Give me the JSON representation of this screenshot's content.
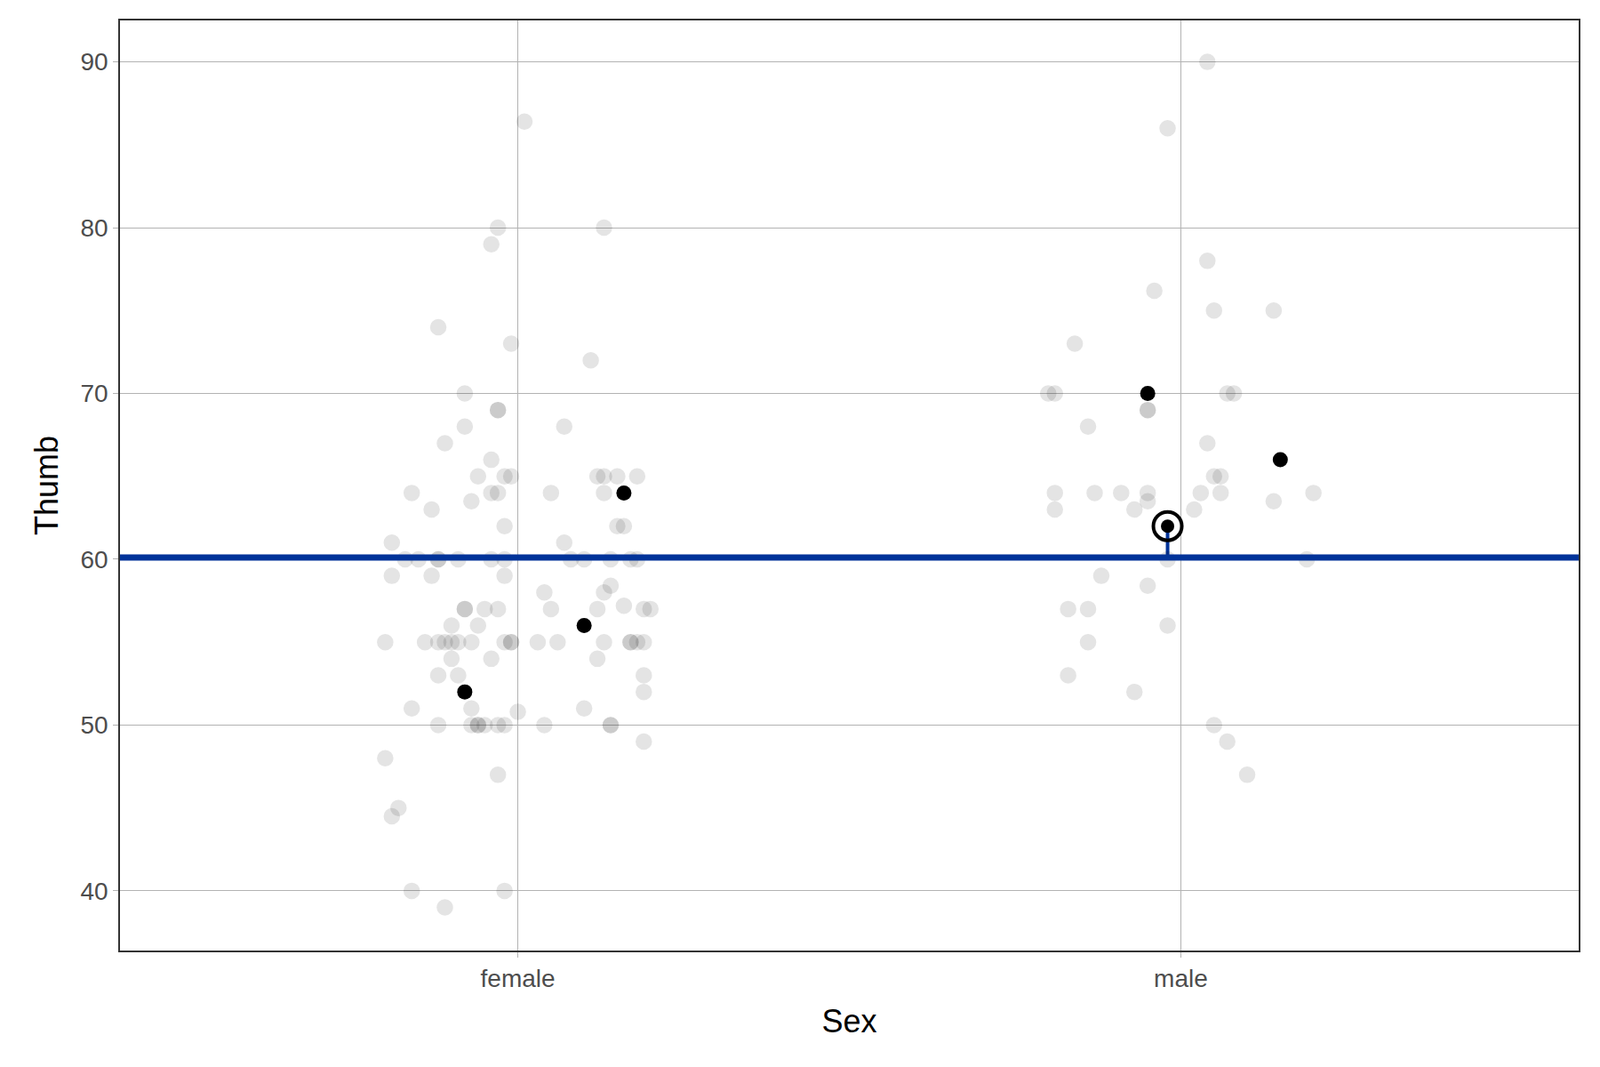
{
  "chart_data": {
    "type": "scatter",
    "x_label": "Sex",
    "y_label": "Thumb",
    "xlim": [
      0.4,
      2.6
    ],
    "xticks": [
      {
        "value": 1,
        "label": "female"
      },
      {
        "value": 2,
        "label": "male"
      }
    ],
    "ylim": [
      36.4,
      92.5
    ],
    "yticks": [
      40,
      50,
      60,
      70,
      80,
      90
    ],
    "grid": true,
    "mean_line": {
      "value": 60.1,
      "color": "#003399"
    },
    "series": [
      {
        "marker": "faint",
        "color": "#000000",
        "x": [
          1.01,
          0.97,
          1.13,
          0.96,
          0.88,
          0.99,
          1.11,
          0.92,
          0.97,
          0.97,
          0.92,
          1.07,
          0.89,
          0.96,
          0.94,
          0.98,
          0.99,
          1.12,
          1.13,
          1.15,
          1.18,
          0.84,
          0.96,
          0.97,
          1.05,
          1.13,
          0.87,
          0.93,
          1.15,
          1.16,
          0.98,
          0.81,
          1.07,
          0.81,
          0.87,
          0.98,
          0.83,
          0.85,
          0.88,
          0.88,
          0.91,
          0.96,
          0.98,
          1.08,
          1.1,
          1.14,
          1.17,
          1.18,
          1.14,
          1.13,
          1.04,
          0.92,
          0.92,
          0.95,
          0.97,
          1.05,
          1.12,
          1.16,
          1.19,
          1.2,
          0.9,
          0.94,
          0.8,
          0.86,
          0.88,
          0.89,
          0.9,
          0.91,
          0.93,
          0.98,
          0.99,
          0.99,
          1.03,
          1.06,
          1.13,
          1.17,
          1.17,
          1.18,
          1.19,
          0.9,
          0.96,
          1.12,
          0.88,
          0.91,
          1.19,
          1.19,
          0.84,
          0.93,
          1.1,
          1.0,
          0.88,
          0.93,
          0.94,
          0.94,
          0.95,
          0.97,
          0.98,
          1.04,
          1.14,
          1.14,
          1.19,
          0.8,
          0.97,
          0.82,
          0.81,
          0.84,
          0.98,
          0.89,
          2.04,
          1.98,
          2.04,
          1.96,
          2.05,
          2.14,
          1.84,
          1.8,
          1.81,
          2.07,
          2.08,
          1.95,
          1.95,
          1.86,
          2.04,
          2.05,
          2.06,
          1.81,
          1.87,
          1.91,
          1.95,
          2.03,
          2.06,
          2.2,
          1.95,
          2.14,
          1.81,
          1.93,
          2.02,
          1.98,
          2.19,
          1.88,
          1.95,
          1.83,
          1.86,
          1.86,
          1.98,
          1.83,
          1.93,
          2.05,
          2.07,
          2.1
        ],
        "values": [
          86.4,
          80,
          80,
          79,
          74,
          73,
          72,
          70,
          69,
          69,
          68,
          68,
          67,
          66,
          65,
          65,
          65,
          65,
          65,
          65,
          65,
          64,
          64,
          64,
          64,
          64,
          63,
          63.5,
          62,
          62,
          62,
          61,
          61,
          59,
          59,
          59,
          60,
          60,
          60,
          60,
          60,
          60,
          60,
          60,
          60,
          60,
          60,
          60,
          58.4,
          58,
          58,
          57,
          57,
          57,
          57,
          57,
          57,
          57.2,
          57,
          57,
          56,
          56,
          55,
          55,
          55,
          55,
          55,
          55,
          55,
          55,
          55,
          55,
          55,
          55,
          55,
          55,
          55,
          55,
          55,
          54,
          54,
          54,
          53,
          53,
          53,
          52,
          51,
          51,
          51,
          50.8,
          50,
          50,
          50,
          50,
          50,
          50,
          50,
          50,
          50,
          50,
          49,
          48,
          47,
          45,
          44.5,
          40,
          40,
          39,
          90,
          86,
          78,
          76.2,
          75,
          75,
          73,
          70,
          70,
          70,
          70,
          69,
          69,
          68,
          67,
          65,
          65,
          64,
          64,
          64,
          64,
          64,
          64,
          64,
          63.5,
          63.5,
          63,
          63,
          63,
          60,
          60,
          59,
          58.4,
          57,
          57,
          55,
          56,
          53,
          52,
          50,
          49,
          47
        ]
      },
      {
        "marker": "solid",
        "color": "#000000",
        "x": [
          0.92,
          1.1,
          1.16,
          1.95,
          2.15
        ],
        "values": [
          52,
          56,
          64,
          70,
          66
        ]
      },
      {
        "marker": "ringed",
        "color": "#000000",
        "x": [
          1.98
        ],
        "values": [
          62
        ]
      }
    ]
  }
}
